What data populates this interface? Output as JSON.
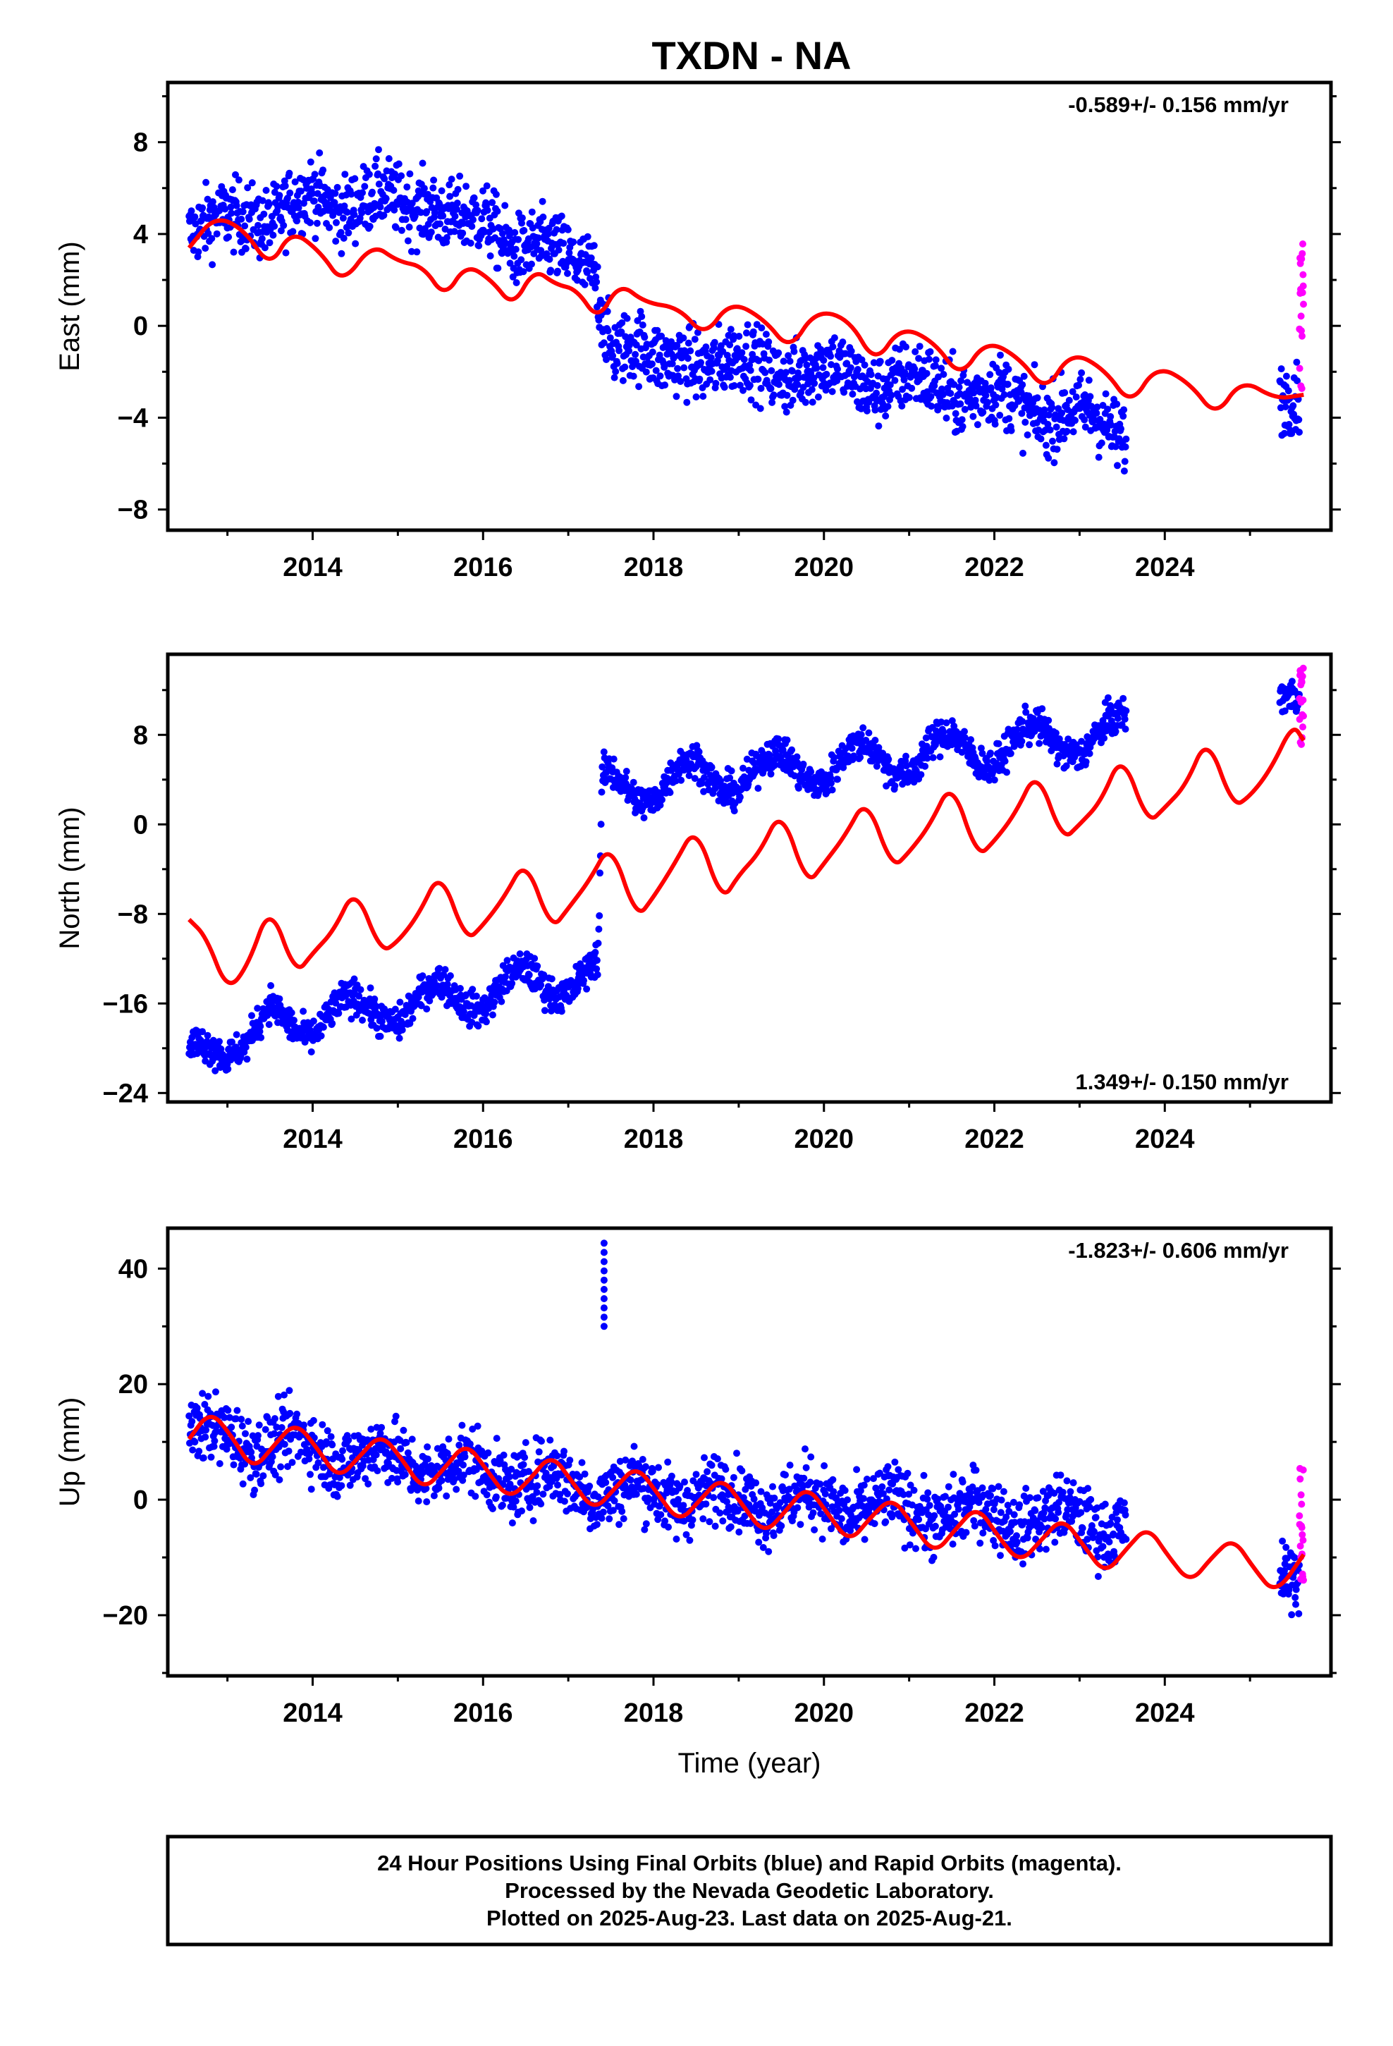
{
  "title": "TXDN - NA",
  "colors": {
    "final": "#0000ff",
    "rapid": "#ff00ff",
    "model": "#ff0000"
  },
  "footer": {
    "line1": "24 Hour Positions Using Final Orbits (blue) and Rapid Orbits (magenta).",
    "line2": "Processed by the Nevada Geodetic Laboratory.",
    "line3": "Plotted on 2025-Aug-23. Last data on 2025-Aug-21."
  },
  "chart_data": [
    {
      "type": "scatter",
      "component": "east",
      "ylabel": "East (mm)",
      "xlabel": "",
      "xlim": [
        2012.3,
        2025.95
      ],
      "ylim": [
        -8.9,
        10.6
      ],
      "xticks": [
        2014,
        2016,
        2018,
        2020,
        2022,
        2024
      ],
      "yticks": [
        -8,
        -4,
        0,
        4,
        8
      ],
      "rate_text": "-0.589+/- 0.156 mm/yr",
      "rate_position": "top-right",
      "final_orbit_range": [
        2012.55,
        2023.55
      ],
      "final_orbit_trend": {
        "t": [
          2012.55,
          2014.0,
          2015.5,
          2016.5,
          2017.3,
          2017.5,
          2019.5,
          2021.5,
          2023.5
        ],
        "v": [
          4.0,
          5.6,
          5.3,
          3.5,
          2.8,
          -1.0,
          -1.8,
          -2.6,
          -4.4
        ]
      },
      "rapid_orbit_range": [
        2025.35,
        2025.63
      ],
      "model": {
        "x": [
          2012.55,
          2012.85,
          2013.2,
          2013.5,
          2013.75,
          2014.1,
          2014.35,
          2014.7,
          2015.0,
          2015.3,
          2015.55,
          2015.8,
          2016.1,
          2016.35,
          2016.6,
          2016.85,
          2017.1,
          2017.35,
          2017.6,
          2017.9,
          2018.3,
          2018.6,
          2018.9,
          2019.3,
          2019.6,
          2019.9,
          2020.3,
          2020.6,
          2020.9,
          2021.3,
          2021.6,
          2021.9,
          2022.3,
          2022.6,
          2022.9,
          2023.3,
          2023.6,
          2023.9,
          2024.3,
          2024.6,
          2024.9,
          2025.3,
          2025.63
        ],
        "y": [
          3.4,
          4.8,
          4.2,
          2.5,
          4.2,
          3.2,
          1.8,
          3.6,
          2.8,
          2.6,
          1.2,
          2.7,
          2.0,
          0.8,
          2.5,
          1.8,
          1.6,
          0.2,
          1.9,
          1.0,
          0.8,
          -0.5,
          1.1,
          0.3,
          -1.1,
          0.7,
          0.3,
          -1.7,
          0.0,
          -0.7,
          -2.3,
          -0.6,
          -1.4,
          -2.9,
          -1.1,
          -1.9,
          -3.5,
          -1.7,
          -2.5,
          -4.0,
          -2.3,
          -3.2,
          -3.0
        ]
      }
    },
    {
      "type": "scatter",
      "component": "north",
      "ylabel": "North (mm)",
      "xlabel": "",
      "xlim": [
        2012.3,
        2025.95
      ],
      "ylim": [
        -24.8,
        15.2
      ],
      "xticks": [
        2014,
        2016,
        2018,
        2020,
        2022,
        2024
      ],
      "yticks": [
        -24,
        -16,
        -8,
        0,
        8
      ],
      "rate_text": "1.349+/- 0.150 mm/yr",
      "rate_position": "bottom-right",
      "final_orbit_range": [
        2012.55,
        2023.55
      ],
      "final_orbit_trend": {
        "t": [
          2012.55,
          2017.35,
          2017.4,
          2023.55
        ],
        "v": [
          -19.5,
          -13.5,
          3.0,
          8.0
        ]
      },
      "rapid_orbit_range": [
        2025.35,
        2025.63
      ],
      "model": {
        "x": [
          2012.55,
          2012.75,
          2013.0,
          2013.25,
          2013.5,
          2013.8,
          2014.0,
          2014.25,
          2014.5,
          2014.8,
          2015.0,
          2015.25,
          2015.5,
          2015.8,
          2016.0,
          2016.25,
          2016.5,
          2016.8,
          2017.0,
          2017.25,
          2017.5,
          2017.8,
          2018.0,
          2018.25,
          2018.5,
          2018.8,
          2019.0,
          2019.25,
          2019.5,
          2019.8,
          2020.0,
          2020.25,
          2020.5,
          2020.8,
          2021.0,
          2021.25,
          2021.5,
          2021.8,
          2022.0,
          2022.25,
          2022.5,
          2022.8,
          2023.0,
          2023.25,
          2023.5,
          2023.8,
          2024.0,
          2024.25,
          2024.5,
          2024.8,
          2025.0,
          2025.25,
          2025.5,
          2025.63
        ],
        "y": [
          -8.5,
          -10.0,
          -15.0,
          -12.5,
          -7.0,
          -13.5,
          -11.5,
          -9.5,
          -5.5,
          -11.5,
          -10.5,
          -8.0,
          -4.0,
          -10.5,
          -9.0,
          -6.5,
          -3.0,
          -9.5,
          -7.5,
          -5.0,
          -1.5,
          -8.5,
          -6.5,
          -3.5,
          0.0,
          -7.0,
          -4.5,
          -2.5,
          1.5,
          -5.5,
          -3.5,
          -1.0,
          2.5,
          -4.0,
          -2.5,
          0.0,
          4.0,
          -3.0,
          -1.5,
          1.0,
          5.0,
          -1.5,
          0.0,
          2.0,
          6.5,
          0.0,
          1.5,
          3.5,
          8.0,
          1.5,
          2.5,
          5.0,
          9.0,
          7.5
        ]
      }
    },
    {
      "type": "scatter",
      "component": "up",
      "ylabel": "Up (mm)",
      "xlabel": "Time (year)",
      "xlim": [
        2012.3,
        2025.95
      ],
      "ylim": [
        -30.5,
        47.0
      ],
      "xticks": [
        2014,
        2016,
        2018,
        2020,
        2022,
        2024
      ],
      "yticks": [
        -20,
        0,
        20,
        40
      ],
      "rate_text": "-1.823+/- 0.606 mm/yr",
      "rate_position": "top-right",
      "final_orbit_range": [
        2012.55,
        2023.55
      ],
      "final_orbit_trend": {
        "t": [
          2012.55,
          2017.5,
          2023.55
        ],
        "v": [
          12.0,
          2.0,
          -4.0
        ]
      },
      "outlier_cluster": {
        "x": 2017.42,
        "y_range": [
          30,
          45
        ]
      },
      "rapid_orbit_range": [
        2025.35,
        2025.63
      ],
      "model": {
        "x": [
          2012.55,
          2012.8,
          2013.05,
          2013.3,
          2013.55,
          2013.8,
          2014.05,
          2014.3,
          2014.55,
          2014.8,
          2015.05,
          2015.3,
          2015.55,
          2015.8,
          2016.05,
          2016.3,
          2016.55,
          2016.8,
          2017.05,
          2017.3,
          2017.55,
          2017.8,
          2018.05,
          2018.3,
          2018.55,
          2018.8,
          2019.05,
          2019.3,
          2019.55,
          2019.8,
          2020.05,
          2020.3,
          2020.55,
          2020.8,
          2021.05,
          2021.3,
          2021.55,
          2021.8,
          2022.05,
          2022.3,
          2022.55,
          2022.8,
          2023.05,
          2023.3,
          2023.55,
          2023.8,
          2024.05,
          2024.3,
          2024.55,
          2024.8,
          2025.05,
          2025.3,
          2025.63
        ],
        "y": [
          10.5,
          15.5,
          11.0,
          5.0,
          9.5,
          13.5,
          9.0,
          3.5,
          7.5,
          11.5,
          7.0,
          1.5,
          5.5,
          10.0,
          5.0,
          0.0,
          3.5,
          8.0,
          3.0,
          -2.0,
          2.0,
          6.0,
          1.0,
          -4.0,
          0.0,
          4.0,
          -1.0,
          -6.0,
          -2.0,
          2.5,
          -2.5,
          -7.5,
          -3.0,
          0.5,
          -4.5,
          -9.5,
          -5.0,
          -1.0,
          -6.5,
          -11.0,
          -7.0,
          -3.0,
          -8.0,
          -13.0,
          -8.5,
          -4.5,
          -10.0,
          -14.5,
          -10.0,
          -6.5,
          -12.0,
          -16.5,
          -9.5
        ]
      }
    }
  ]
}
